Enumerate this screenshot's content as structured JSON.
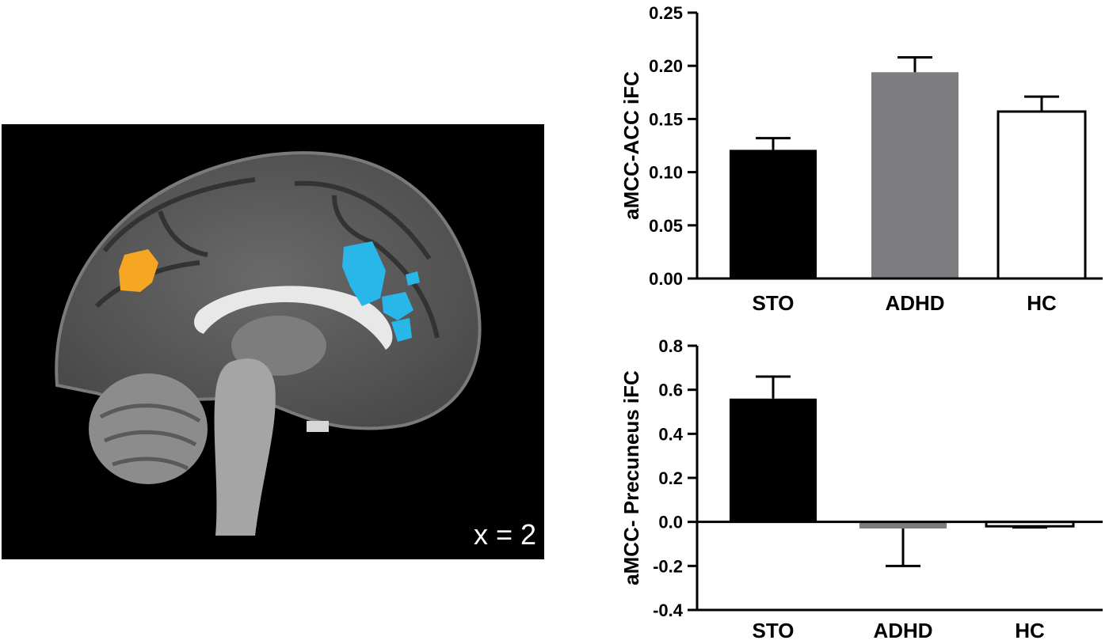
{
  "brain_image": {
    "slice_label": "x = 2",
    "colors": {
      "background": "#000000",
      "positive_cluster": "#f5a623",
      "negative_cluster": "#29b6e8"
    }
  },
  "chart_data": [
    {
      "type": "bar",
      "categories": [
        "STO",
        "ADHD",
        "HC"
      ],
      "values": [
        0.121,
        0.194,
        0.157
      ],
      "errors": [
        0.011,
        0.014,
        0.014
      ],
      "colors": [
        "#000000",
        "#7d7d80",
        "#ffffff"
      ],
      "ylabel": "aMCC-ACC iFC",
      "ylim": [
        0.0,
        0.25
      ],
      "yticks": [
        "0.00",
        "0.05",
        "0.10",
        "0.15",
        "0.20",
        "0.25"
      ],
      "grid": false
    },
    {
      "type": "bar",
      "categories": [
        "STO",
        "ADHD",
        "HC"
      ],
      "values": [
        0.56,
        -0.03,
        -0.02
      ],
      "errors": [
        0.1,
        0.17,
        0.005
      ],
      "colors": [
        "#000000",
        "#7d7d80",
        "#ffffff"
      ],
      "ylabel": "aMCC- Precuneus iFC",
      "ylim": [
        -0.4,
        0.8
      ],
      "yticks": [
        "-0.4",
        "-0.2",
        "0.0",
        "0.2",
        "0.4",
        "0.6",
        "0.8"
      ],
      "grid": false
    }
  ]
}
